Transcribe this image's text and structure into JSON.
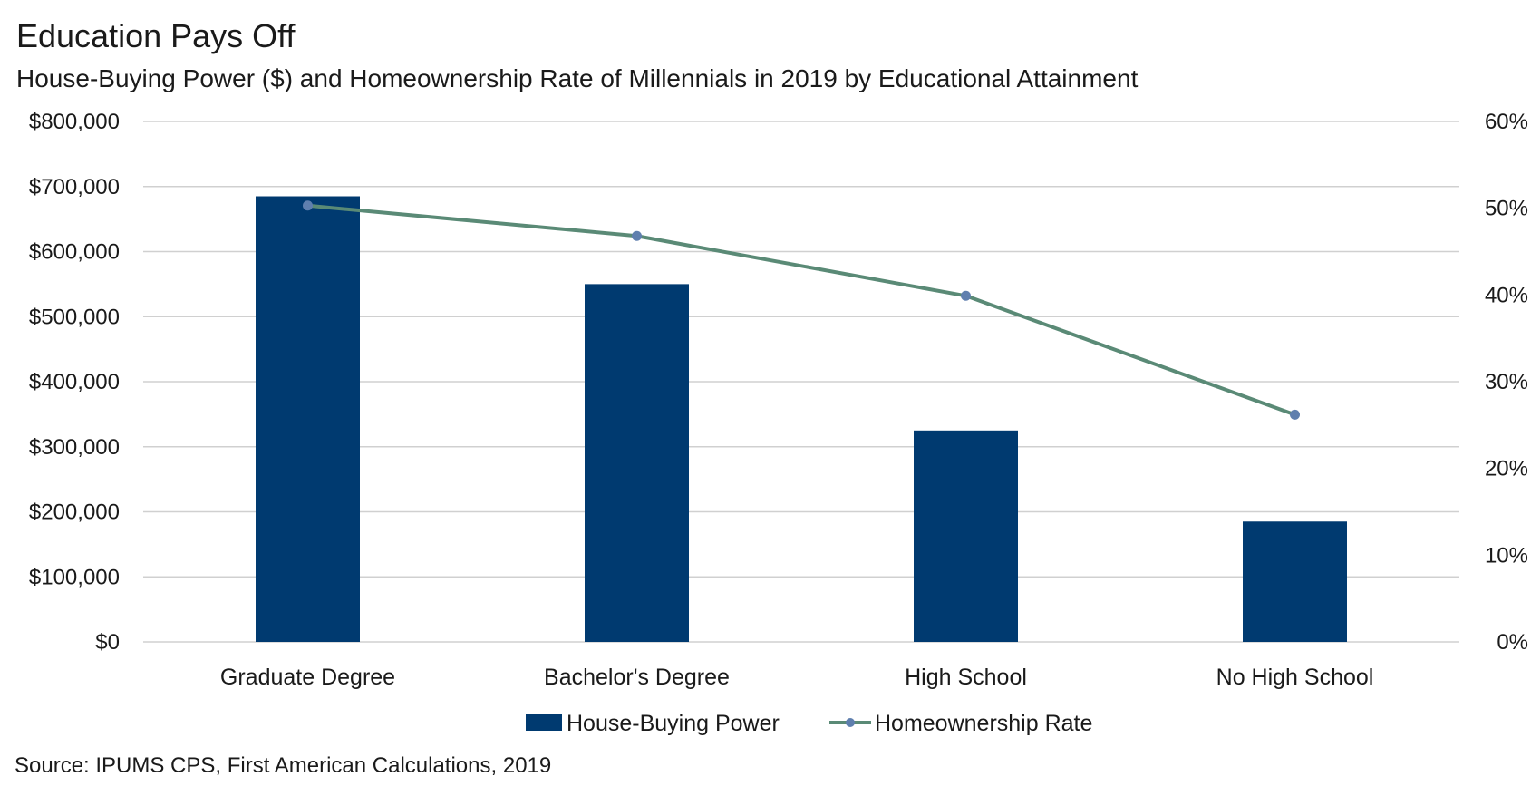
{
  "title": "Education Pays Off",
  "subtitle": "House-Buying Power ($) and Homeownership Rate of Millennials in 2019 by Educational Attainment",
  "source": "Source: IPUMS CPS, First American Calculations, 2019",
  "colors": {
    "bar": "#003a70",
    "line": "#5a8a76",
    "marker": "#5f7fae",
    "grid": "#d0d0d0",
    "text": "#1a1a1a"
  },
  "chart_data": {
    "type": "bar",
    "categories": [
      "Graduate Degree",
      "Bachelor's Degree",
      "High School",
      "No High School"
    ],
    "series": [
      {
        "name": "House-Buying Power",
        "type": "bar",
        "axis": "left",
        "values": [
          685000,
          550000,
          325000,
          185000
        ]
      },
      {
        "name": "Homeownership Rate",
        "type": "line",
        "axis": "right",
        "values": [
          50.3,
          46.8,
          39.9,
          26.2
        ]
      }
    ],
    "y_left": {
      "ylim": [
        0,
        800000
      ],
      "ticks": [
        0,
        100000,
        200000,
        300000,
        400000,
        500000,
        600000,
        700000,
        800000
      ],
      "tick_labels": [
        "$0",
        "$100,000",
        "$200,000",
        "$300,000",
        "$400,000",
        "$500,000",
        "$600,000",
        "$700,000",
        "$800,000"
      ]
    },
    "y_right": {
      "ylim": [
        0,
        60
      ],
      "ticks": [
        0,
        10,
        20,
        30,
        40,
        50,
        60
      ],
      "tick_labels": [
        "0%",
        "10%",
        "20%",
        "30%",
        "40%",
        "50%",
        "60%"
      ]
    },
    "grid": true,
    "legend": "bottom"
  }
}
